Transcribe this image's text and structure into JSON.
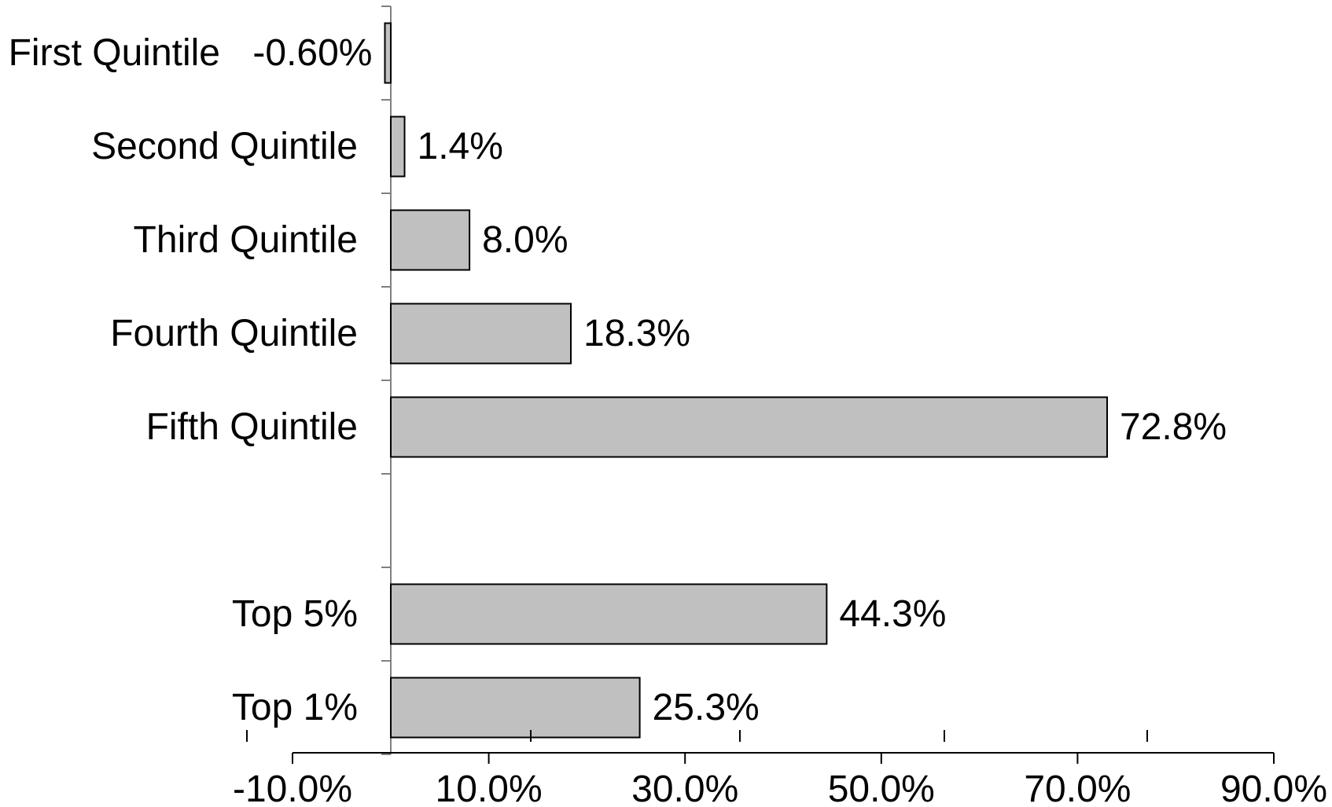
{
  "chart_data": {
    "type": "bar",
    "orientation": "horizontal",
    "title": "",
    "xlabel": "",
    "ylabel": "",
    "categories": [
      "First Quintile",
      "Second Quintile",
      "Third Quintile",
      "Fourth Quintile",
      "Fifth Quintile",
      "",
      "Top 5%",
      "Top 1%"
    ],
    "values": [
      -0.6,
      1.4,
      8.0,
      18.3,
      72.8,
      null,
      44.3,
      25.3
    ],
    "value_labels": [
      "-0.60%",
      "1.4%",
      "8.0%",
      "18.3%",
      "72.8%",
      "",
      "44.3%",
      "25.3%"
    ],
    "xlim": [
      -10,
      90
    ],
    "x_ticks": [
      -10,
      10,
      30,
      50,
      70,
      90
    ],
    "x_tick_labels": [
      "-10.0%",
      "10.0%",
      "30.0%",
      "50.0%",
      "70.0%",
      "90.0%"
    ],
    "grid": false,
    "legend": "none",
    "bar_color": "#c0c0c0",
    "bar_edge_color": "#000000"
  }
}
